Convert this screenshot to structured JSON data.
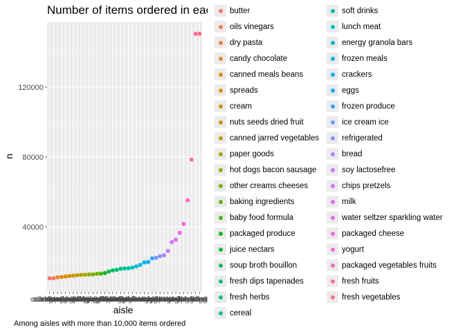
{
  "chart_data": {
    "type": "scatter",
    "title": "Number of items ordered in each aisle",
    "xlabel": "aisle",
    "ylabel": "n",
    "caption": "Among aisles with more than 10,000 items ordered",
    "ylim": [
      5000,
      150000
    ],
    "yticks": [
      40000,
      80000,
      120000
    ],
    "ytick_labels": [
      "40000",
      "80000",
      "120000"
    ],
    "grid": true,
    "legend_position": "right",
    "points": [
      {
        "aisle": "butter",
        "n": 10575,
        "color": "#F8766D"
      },
      {
        "aisle": "oils vinegars",
        "n": 10600,
        "color": "#F37B59"
      },
      {
        "aisle": "dry pasta",
        "n": 11100,
        "color": "#ED8141"
      },
      {
        "aisle": "candy chocolate",
        "n": 11300,
        "color": "#E6861F"
      },
      {
        "aisle": "canned meals beans",
        "n": 11600,
        "color": "#DE8C00"
      },
      {
        "aisle": "spreads",
        "n": 11900,
        "color": "#D59100"
      },
      {
        "aisle": "cream",
        "n": 12100,
        "color": "#CB9600"
      },
      {
        "aisle": "nuts seeds dried fruit",
        "n": 12350,
        "color": "#C09B00"
      },
      {
        "aisle": "canned jarred vegetables",
        "n": 12500,
        "color": "#B3A000"
      },
      {
        "aisle": "paper goods",
        "n": 12600,
        "color": "#A5A400"
      },
      {
        "aisle": "hot dogs bacon sausage",
        "n": 12700,
        "color": "#95A900"
      },
      {
        "aisle": "other creams cheeses",
        "n": 12800,
        "color": "#83AD00"
      },
      {
        "aisle": "baking ingredients",
        "n": 13100,
        "color": "#6BB100"
      },
      {
        "aisle": "baby food formula",
        "n": 13200,
        "color": "#49B400"
      },
      {
        "aisle": "packaged produce",
        "n": 13500,
        "color": "#00B81F"
      },
      {
        "aisle": "juice nectars",
        "n": 14400,
        "color": "#00BB45"
      },
      {
        "aisle": "soup broth bouillon",
        "n": 15100,
        "color": "#00BD5F"
      },
      {
        "aisle": "fresh dips tapenades",
        "n": 15400,
        "color": "#00BF75"
      },
      {
        "aisle": "fresh herbs",
        "n": 16000,
        "color": "#00C08A"
      },
      {
        "aisle": "cereal",
        "n": 16200,
        "color": "#00C19D"
      },
      {
        "aisle": "soft drinks",
        "n": 16300,
        "color": "#00C0B0"
      },
      {
        "aisle": "lunch meat",
        "n": 16700,
        "color": "#00BFC2"
      },
      {
        "aisle": "energy granola bars",
        "n": 17400,
        "color": "#00BCD2"
      },
      {
        "aisle": "frozen meals",
        "n": 18200,
        "color": "#00B8E1"
      },
      {
        "aisle": "crackers",
        "n": 19600,
        "color": "#00B2EE"
      },
      {
        "aisle": "eggs",
        "n": 19900,
        "color": "#00ABF9"
      },
      {
        "aisle": "frozen produce",
        "n": 22000,
        "color": "#35A2FF"
      },
      {
        "aisle": "ice cream ice",
        "n": 22300,
        "color": "#6C99FF"
      },
      {
        "aisle": "refrigerated",
        "n": 23200,
        "color": "#8F8FFF"
      },
      {
        "aisle": "bread",
        "n": 23700,
        "color": "#AA86FF"
      },
      {
        "aisle": "soy lactosefree",
        "n": 26200,
        "color": "#C17BFF"
      },
      {
        "aisle": "chips pretzels",
        "n": 31300,
        "color": "#D472FF"
      },
      {
        "aisle": "milk",
        "n": 32600,
        "color": "#E36AF7"
      },
      {
        "aisle": "water seltzer sparkling water",
        "n": 36600,
        "color": "#EF66E9"
      },
      {
        "aisle": "packaged cheese",
        "n": 41700,
        "color": "#F865D8"
      },
      {
        "aisle": "yogurt",
        "n": 55200,
        "color": "#FE66C6"
      },
      {
        "aisle": "packaged vegetables fruits",
        "n": 78500,
        "color": "#FF69B1"
      },
      {
        "aisle": "fresh fruits",
        "n": 150500,
        "color": "#FF6C9C"
      },
      {
        "aisle": "fresh vegetables",
        "n": 150600,
        "color": "#FE6F87"
      }
    ]
  }
}
